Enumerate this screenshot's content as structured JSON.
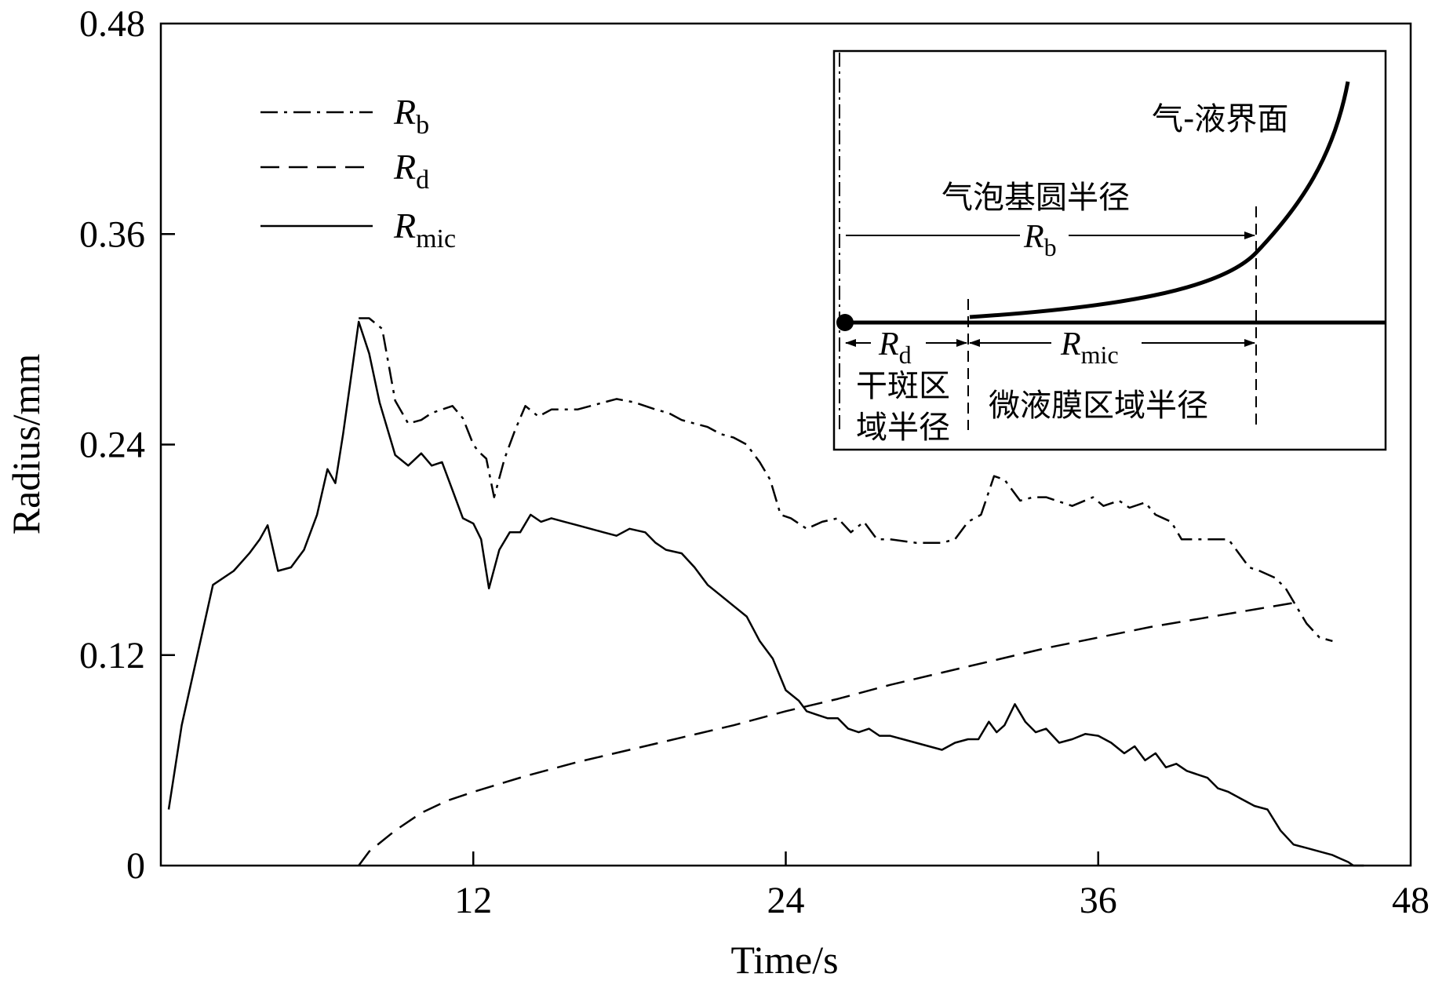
{
  "chart_data": {
    "type": "line",
    "xlabel": "Time/s",
    "ylabel": "Radius/mm",
    "xlim": [
      0,
      48
    ],
    "ylim": [
      0,
      0.48
    ],
    "xticks": [
      "0",
      "12",
      "24",
      "36",
      "48"
    ],
    "yticks": [
      "0",
      "0.12",
      "0.24",
      "0.36",
      "0.48"
    ],
    "grid": false,
    "legend_position": "top-left",
    "series": [
      {
        "name": "Rb",
        "name_main": "R",
        "name_sub": "b",
        "style": "dash-dot",
        "x": [
          7.6,
          8.0,
          8.5,
          9.0,
          9.5,
          10.0,
          10.4,
          10.8,
          11.2,
          11.6,
          12.0,
          12.2,
          12.5,
          12.8,
          13.2,
          13.6,
          14.0,
          14.5,
          15.0,
          16.0,
          17.5,
          18.2,
          19.0,
          19.5,
          20.0,
          20.5,
          21.0,
          21.5,
          22.0,
          22.5,
          23.0,
          23.4,
          23.8,
          24.2,
          24.8,
          25.4,
          26.0,
          26.5,
          27.0,
          27.5,
          28.0,
          29.0,
          30.0,
          30.5,
          31.0,
          31.5,
          32.0,
          32.4,
          33.0,
          33.5,
          34.0,
          35.0,
          35.8,
          36.2,
          36.8,
          37.2,
          37.8,
          38.2,
          38.8,
          39.2,
          40.0,
          41.0,
          41.8,
          42.2,
          42.8,
          43.2,
          43.6,
          44.0,
          44.5,
          45.0
        ],
        "y": [
          0.312,
          0.312,
          0.306,
          0.265,
          0.252,
          0.254,
          0.258,
          0.26,
          0.262,
          0.255,
          0.24,
          0.236,
          0.232,
          0.21,
          0.232,
          0.248,
          0.262,
          0.256,
          0.26,
          0.26,
          0.266,
          0.264,
          0.26,
          0.258,
          0.254,
          0.252,
          0.25,
          0.246,
          0.244,
          0.24,
          0.23,
          0.22,
          0.2,
          0.198,
          0.192,
          0.196,
          0.198,
          0.19,
          0.196,
          0.186,
          0.186,
          0.184,
          0.184,
          0.186,
          0.196,
          0.2,
          0.222,
          0.22,
          0.208,
          0.21,
          0.21,
          0.205,
          0.21,
          0.205,
          0.208,
          0.204,
          0.207,
          0.2,
          0.196,
          0.186,
          0.186,
          0.186,
          0.17,
          0.168,
          0.164,
          0.158,
          0.148,
          0.138,
          0.13,
          0.128
        ]
      },
      {
        "name": "Rd",
        "name_main": "R",
        "name_sub": "d",
        "style": "dashed",
        "x": [
          7.6,
          8.0,
          9.0,
          10.0,
          11.0,
          12.0,
          14.0,
          16.0,
          18.0,
          20.0,
          22.0,
          24.0,
          26.0,
          28.0,
          30.0,
          32.0,
          34.0,
          36.0,
          38.0,
          40.0,
          42.0,
          43.6
        ],
        "y": [
          0.0,
          0.008,
          0.02,
          0.03,
          0.037,
          0.042,
          0.051,
          0.059,
          0.066,
          0.073,
          0.08,
          0.088,
          0.095,
          0.103,
          0.11,
          0.117,
          0.124,
          0.13,
          0.136,
          0.141,
          0.146,
          0.15
        ]
      },
      {
        "name": "Rmic",
        "name_main": "R",
        "name_sub": "mic",
        "style": "solid",
        "x": [
          0.3,
          0.8,
          1.4,
          2.0,
          2.8,
          3.4,
          3.8,
          4.1,
          4.5,
          5.0,
          5.5,
          6.0,
          6.4,
          6.7,
          7.0,
          7.3,
          7.6,
          8.0,
          8.4,
          9.0,
          9.5,
          10.0,
          10.4,
          10.8,
          11.2,
          11.6,
          12.0,
          12.3,
          12.6,
          13.0,
          13.4,
          13.8,
          14.2,
          14.6,
          15.0,
          15.5,
          16.0,
          16.5,
          17.0,
          17.5,
          18.0,
          18.6,
          19.0,
          19.4,
          20.0,
          20.5,
          21.0,
          21.5,
          22.0,
          22.5,
          23.0,
          23.5,
          24.0,
          24.5,
          24.8,
          25.2,
          25.6,
          26.0,
          26.4,
          26.8,
          27.2,
          27.6,
          28.0,
          28.5,
          29.0,
          29.5,
          30.0,
          30.5,
          31.0,
          31.4,
          31.8,
          32.1,
          32.4,
          32.8,
          33.2,
          33.6,
          34.0,
          34.5,
          35.0,
          35.5,
          36.0,
          36.5,
          37.0,
          37.4,
          37.8,
          38.2,
          38.6,
          39.0,
          39.4,
          39.8,
          40.2,
          40.6,
          41.0,
          41.5,
          42.0,
          42.5,
          43.0,
          43.5,
          44.0,
          44.5,
          45.0,
          45.3,
          45.6,
          45.8,
          46.0,
          46.1,
          46.2
        ],
        "y": [
          0.032,
          0.08,
          0.12,
          0.16,
          0.168,
          0.178,
          0.186,
          0.194,
          0.168,
          0.17,
          0.18,
          0.2,
          0.226,
          0.218,
          0.246,
          0.278,
          0.31,
          0.292,
          0.264,
          0.234,
          0.228,
          0.235,
          0.228,
          0.23,
          0.214,
          0.198,
          0.195,
          0.186,
          0.158,
          0.18,
          0.19,
          0.19,
          0.2,
          0.196,
          0.198,
          0.196,
          0.194,
          0.192,
          0.19,
          0.188,
          0.192,
          0.19,
          0.184,
          0.18,
          0.178,
          0.17,
          0.16,
          0.154,
          0.148,
          0.142,
          0.128,
          0.118,
          0.1,
          0.094,
          0.088,
          0.086,
          0.084,
          0.084,
          0.078,
          0.076,
          0.078,
          0.074,
          0.074,
          0.072,
          0.07,
          0.068,
          0.066,
          0.07,
          0.072,
          0.072,
          0.082,
          0.076,
          0.08,
          0.092,
          0.082,
          0.076,
          0.078,
          0.07,
          0.072,
          0.075,
          0.074,
          0.07,
          0.064,
          0.068,
          0.06,
          0.064,
          0.056,
          0.058,
          0.054,
          0.052,
          0.05,
          0.044,
          0.042,
          0.038,
          0.034,
          0.032,
          0.02,
          0.012,
          0.01,
          0.008,
          0.006,
          0.004,
          0.002,
          0.0,
          0.0,
          0.0,
          0.0
        ]
      }
    ],
    "inset": {
      "gas_liquid_interface": "气-液界面",
      "bubble_base_radius": "气泡基圆半径",
      "rb_main": "R",
      "rb_sub": "b",
      "rd_main": "R",
      "rd_sub": "d",
      "rmic_main": "R",
      "rmic_sub": "mic",
      "dry_spot_line1": "干斑区",
      "dry_spot_line2": "域半径",
      "micro_film_radius": "微液膜区域半径"
    }
  }
}
